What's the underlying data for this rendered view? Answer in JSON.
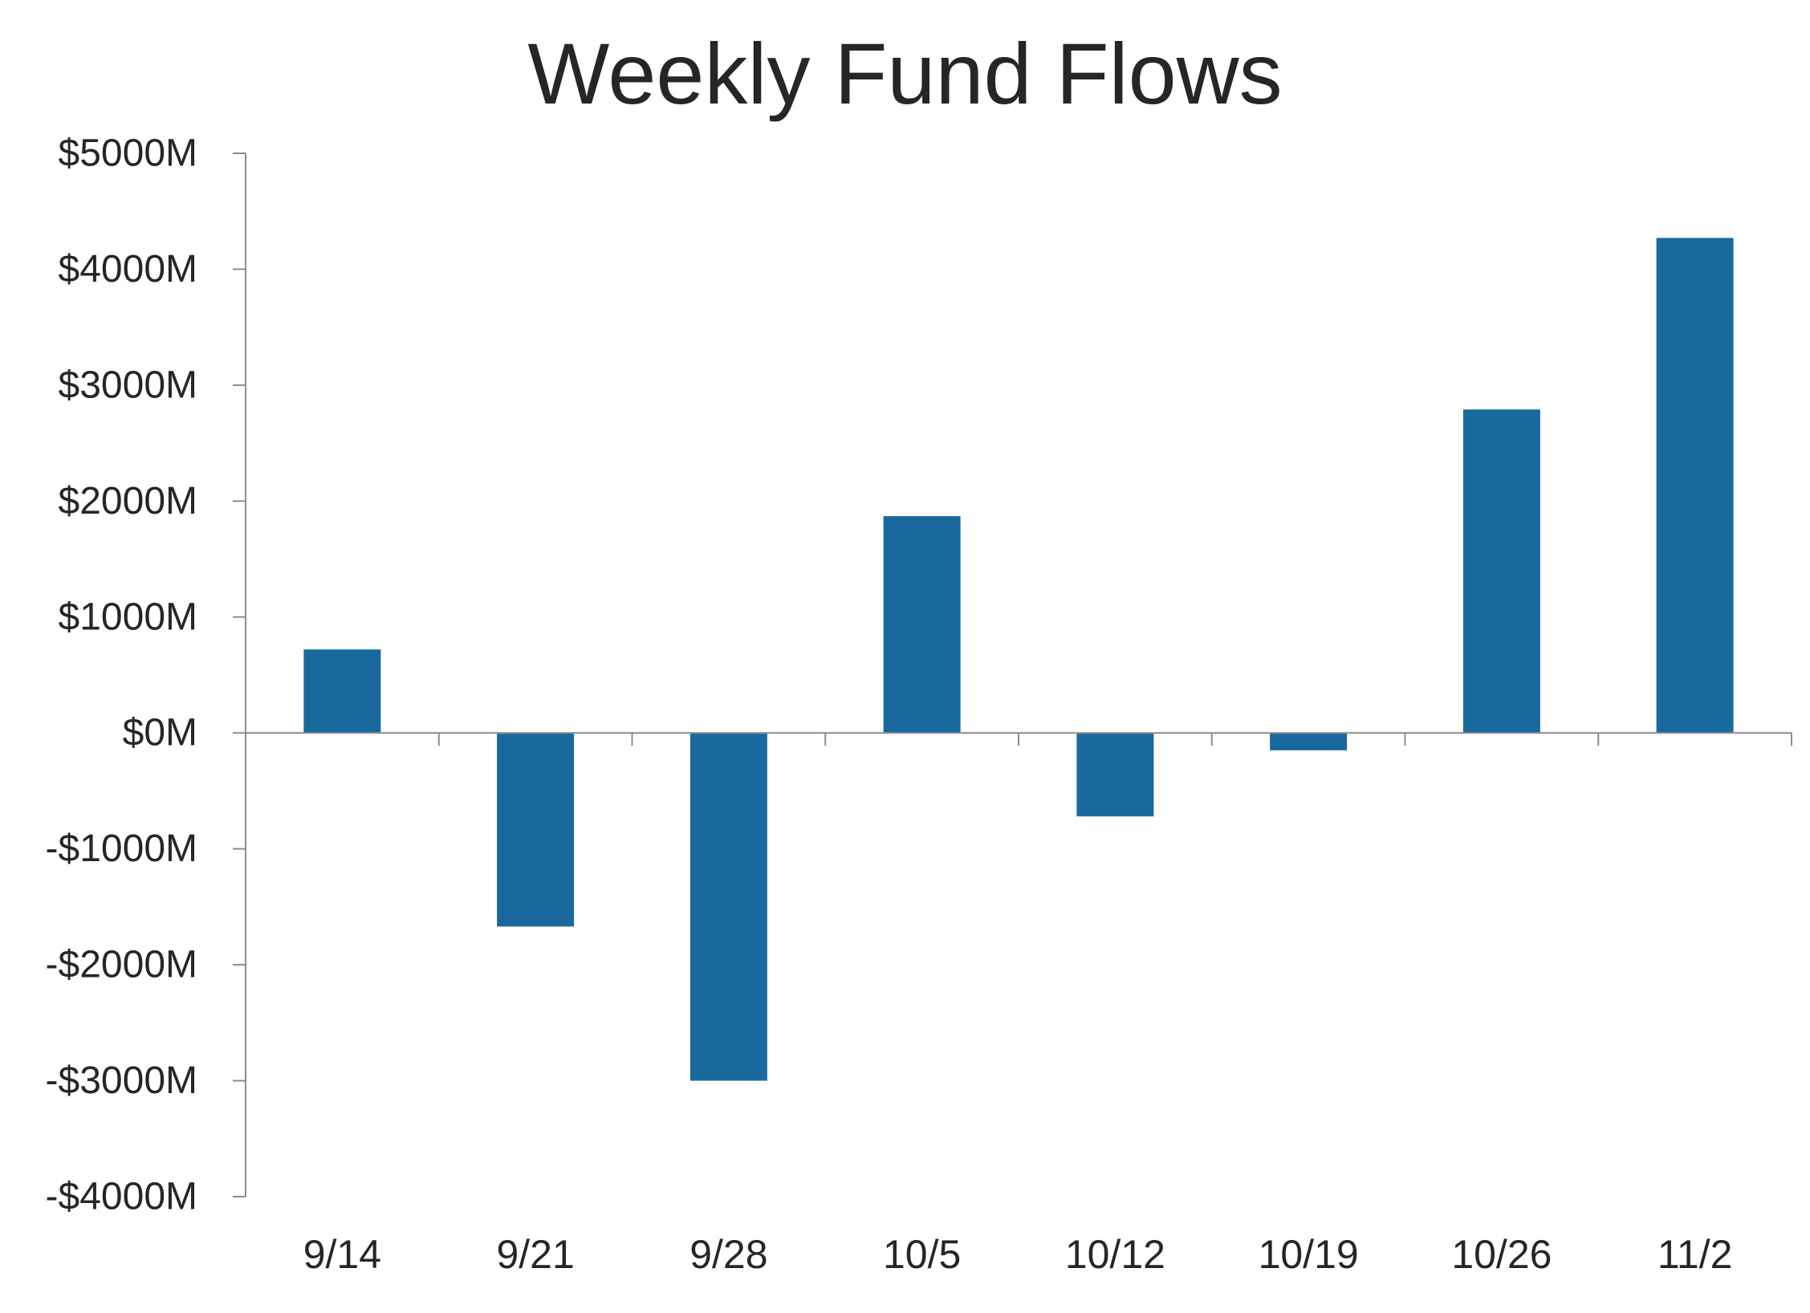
{
  "chart_data": {
    "type": "bar",
    "title": "Weekly Fund Flows",
    "xlabel": "",
    "ylabel": "",
    "categories": [
      "9/14",
      "9/21",
      "9/28",
      "10/5",
      "10/12",
      "10/19",
      "10/26",
      "11/2"
    ],
    "values": [
      720,
      -1670,
      -3000,
      1870,
      -720,
      -150,
      2790,
      4270
    ],
    "ylim": [
      -4000,
      5000
    ],
    "y_ticks": [
      5000,
      4000,
      3000,
      2000,
      1000,
      0,
      -1000,
      -2000,
      -3000,
      -4000
    ],
    "y_tick_labels": [
      "$5000M",
      "$4000M",
      "$3000M",
      "$2000M",
      "$1000M",
      "$0M",
      "-$1000M",
      "-$2000M",
      "-$3000M",
      "-$4000M"
    ],
    "grid": false,
    "legend": "none",
    "colors": {
      "bar": "#1A699E",
      "axis": "#8C8C8C",
      "text": "#262626"
    }
  }
}
